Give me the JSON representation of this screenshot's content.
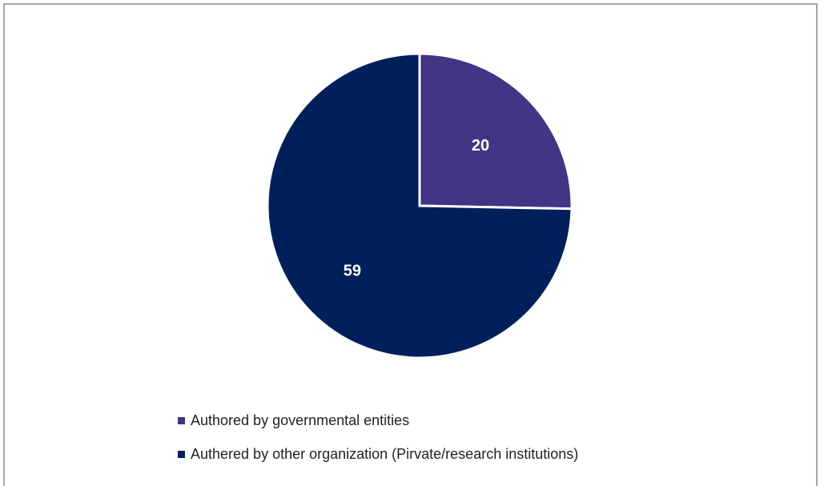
{
  "chart_data": {
    "type": "pie",
    "title": "",
    "slices": [
      {
        "label": "Authored by governmental entities",
        "value": 20,
        "color": "#433485"
      },
      {
        "label": "Authered by other organization (Pirvate/research institutions)",
        "value": 59,
        "color": "#00205b"
      }
    ],
    "data_labels_shown": true,
    "data_label_color": "#ffffff",
    "start_angle_deg": 0,
    "direction": "clockwise",
    "slice_separator_color": "#ffffff",
    "legend_position": "bottom-left"
  }
}
